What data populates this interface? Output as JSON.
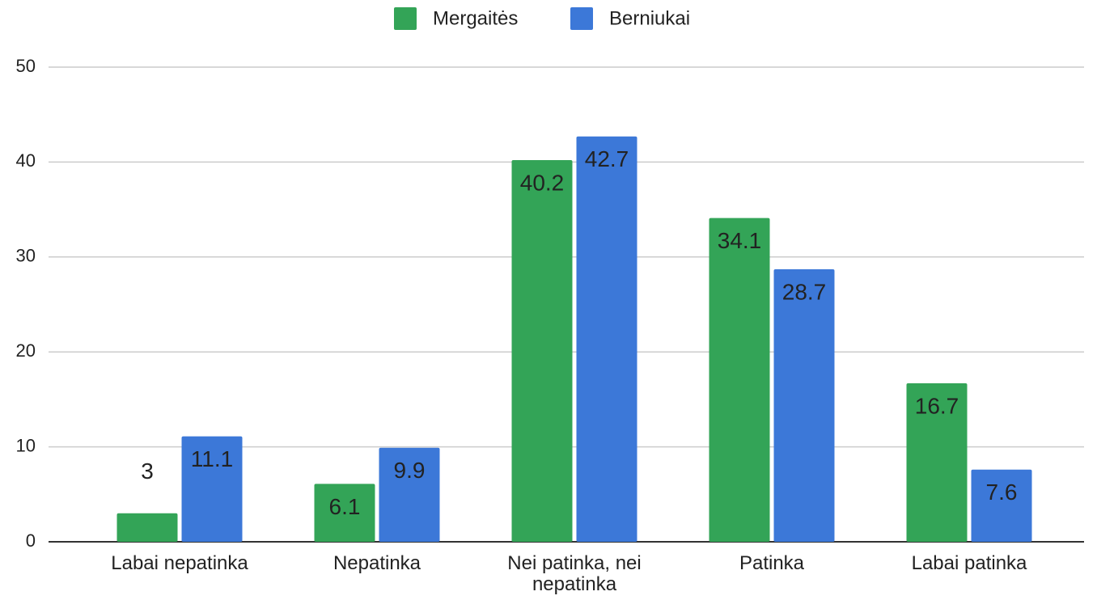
{
  "chart_data": {
    "type": "bar",
    "categories": [
      "Labai nepatinka",
      "Nepatinka",
      "Nei patinka, nei nepatinka",
      "Patinka",
      "Labai patinka"
    ],
    "series": [
      {
        "name": "Mergaitės",
        "color": "#33a457",
        "values": [
          3,
          6.1,
          40.2,
          34.1,
          16.7
        ]
      },
      {
        "name": "Berniukai",
        "color": "#3c78d8",
        "values": [
          11.1,
          9.9,
          42.7,
          28.7,
          7.6
        ]
      }
    ],
    "ylim": [
      0,
      50
    ],
    "yticks": [
      0,
      10,
      20,
      30,
      40,
      50
    ],
    "grid": true,
    "legend": "top"
  }
}
